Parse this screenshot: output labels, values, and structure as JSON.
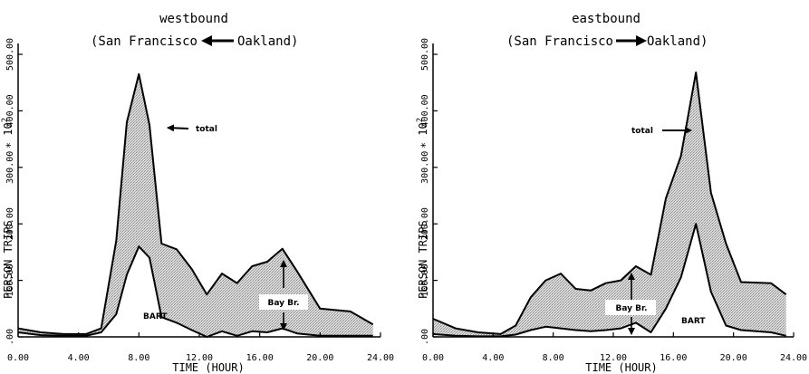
{
  "chart_data": [
    {
      "type": "area",
      "title": "westbound",
      "subtitle_from": "(San Francisco",
      "subtitle_to": "Oakland)",
      "xlabel": "TIME (HOUR)",
      "ylabel": "PERSON TRIPS",
      "yunit": "∗ 10",
      "yunit_exp": "2",
      "xlim": [
        0,
        24
      ],
      "ylim": [
        0,
        500
      ],
      "x_ticks": [
        "0.00",
        "4.00",
        "8.00",
        "12.00",
        "16.00",
        "20.00",
        "24.00"
      ],
      "y_ticks": [
        ".00",
        "100.00",
        "200.00",
        "300.00",
        "400.00",
        "500.00"
      ],
      "grid": false,
      "series": [
        {
          "name": "total",
          "x": [
            0,
            1.5,
            3,
            4.5,
            5.5,
            6.5,
            7.2,
            8,
            8.7,
            9.5,
            10.5,
            11.5,
            12.5,
            13.5,
            14.5,
            15.5,
            16.5,
            17.5,
            18.5,
            20,
            22,
            23.5
          ],
          "y": [
            15,
            8,
            5,
            5,
            15,
            170,
            380,
            465,
            375,
            165,
            155,
            120,
            75,
            112,
            95,
            125,
            133,
            156,
            115,
            50,
            45,
            22
          ]
        },
        {
          "name": "BART",
          "x": [
            0,
            1.5,
            3,
            4.5,
            5.5,
            6.5,
            7.2,
            8,
            8.7,
            9.5,
            10.5,
            11.5,
            12.5,
            13.5,
            14.5,
            15.5,
            16.5,
            17.5,
            18.5,
            20,
            22,
            23.5
          ],
          "y": [
            8,
            3,
            2,
            2,
            8,
            40,
            110,
            160,
            140,
            35,
            25,
            12,
            0,
            10,
            2,
            10,
            8,
            15,
            6,
            2,
            2,
            2
          ]
        }
      ],
      "annotations": {
        "total_label": "total",
        "bart_label": "BART",
        "bay_label": "Bay Br."
      }
    },
    {
      "type": "area",
      "title": "eastbound",
      "subtitle_from": "(San Francisco",
      "subtitle_to": "Oakland)",
      "xlabel": "TIME (HOUR)",
      "ylabel": "PERSON TRIPS",
      "yunit": "∗ 10",
      "yunit_exp": "2",
      "xlim": [
        0,
        24
      ],
      "ylim": [
        0,
        500
      ],
      "x_ticks": [
        "0.00",
        "4.00",
        "8.00",
        "12.00",
        "16.00",
        "20.00",
        "24.00"
      ],
      "y_ticks": [
        ".00",
        "100.00",
        "200.00",
        "300.00",
        "400.00",
        "500.00"
      ],
      "grid": false,
      "series": [
        {
          "name": "total",
          "x": [
            0,
            1.5,
            3,
            4.5,
            5.5,
            6.5,
            7.5,
            8.5,
            9.5,
            10.5,
            11.5,
            12.5,
            13.5,
            14.5,
            15.5,
            16.5,
            17.5,
            18.5,
            19.5,
            20.5,
            22.5,
            23.5
          ],
          "y": [
            32,
            15,
            8,
            5,
            20,
            70,
            100,
            112,
            85,
            82,
            95,
            100,
            125,
            110,
            245,
            320,
            468,
            255,
            165,
            97,
            95,
            75
          ]
        },
        {
          "name": "BART",
          "x": [
            0,
            1.5,
            3,
            4.5,
            5.5,
            6.5,
            7.5,
            8.5,
            9.5,
            10.5,
            11.5,
            12.5,
            13.5,
            14.5,
            15.5,
            16.5,
            17.5,
            18.5,
            19.5,
            20.5,
            22.5,
            23.5
          ],
          "y": [
            5,
            2,
            1,
            1,
            4,
            12,
            18,
            15,
            12,
            10,
            12,
            15,
            25,
            8,
            50,
            105,
            200,
            80,
            20,
            12,
            8,
            2
          ]
        }
      ],
      "annotations": {
        "total_label": "total",
        "bart_label": "BART",
        "bay_label": "Bay Br."
      }
    }
  ]
}
